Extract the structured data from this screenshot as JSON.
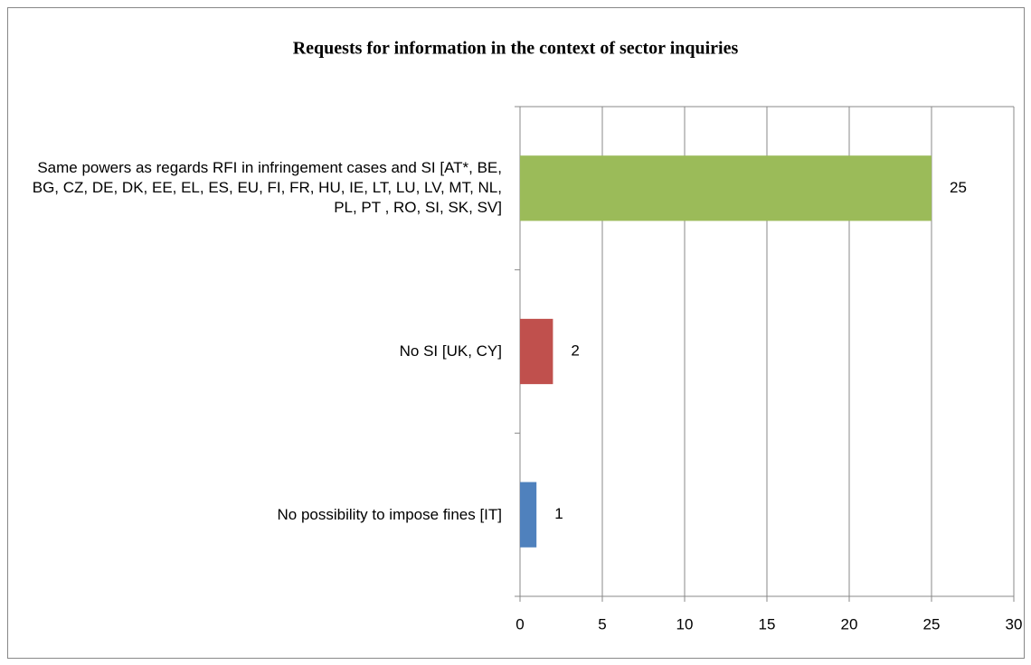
{
  "chart_data": {
    "type": "bar",
    "orientation": "horizontal",
    "title": "Requests for information in the context of sector inquiries",
    "categories": [
      "Same powers as regards RFI in infringement cases and SI [AT*, BE, BG, CZ, DE, DK, EE, EL, ES, EU, FI, FR, HU, IE,  LT, LU, LV, MT, NL, PL, PT , RO, SI, SK, SV]",
      "No SI [UK, CY]",
      "No possibility to impose fines [IT]"
    ],
    "values": [
      25,
      2,
      1
    ],
    "colors": [
      "#9bbb59",
      "#c0504d",
      "#4f81bd"
    ],
    "xlim": [
      0,
      30
    ],
    "xticks": [
      0,
      5,
      10,
      15,
      20,
      25,
      30
    ],
    "grid": true
  }
}
